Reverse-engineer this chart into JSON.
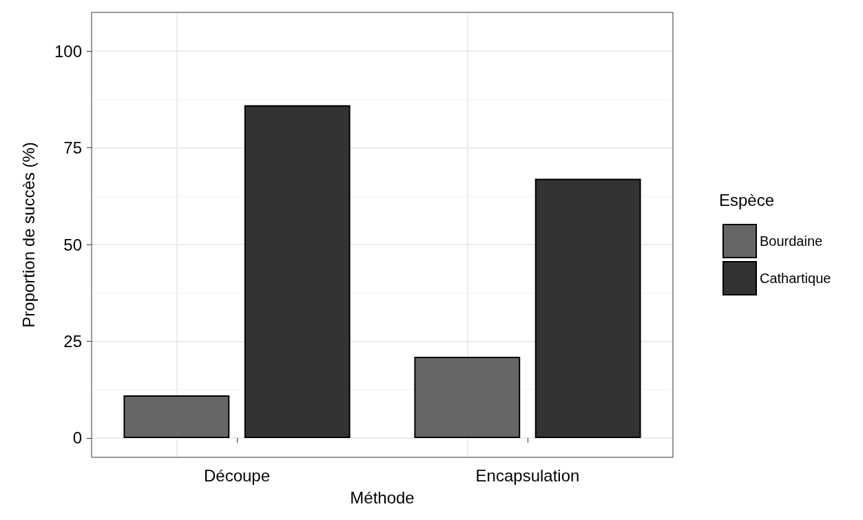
{
  "chart_data": {
    "type": "bar",
    "xlabel": "Méthode",
    "ylabel": "Proportion de succès (%)",
    "legend_title": "Espèce",
    "categories": [
      "Découpe",
      "Encapsulation"
    ],
    "series": [
      {
        "name": "Bourdaine",
        "color": "#666666",
        "values": [
          11,
          21
        ]
      },
      {
        "name": "Cathartique",
        "color": "#333333",
        "values": [
          86,
          67
        ]
      }
    ],
    "ylim": [
      -5,
      110
    ],
    "yticks": [
      0,
      25,
      50,
      75,
      100
    ],
    "grid": true,
    "legend": "right"
  }
}
